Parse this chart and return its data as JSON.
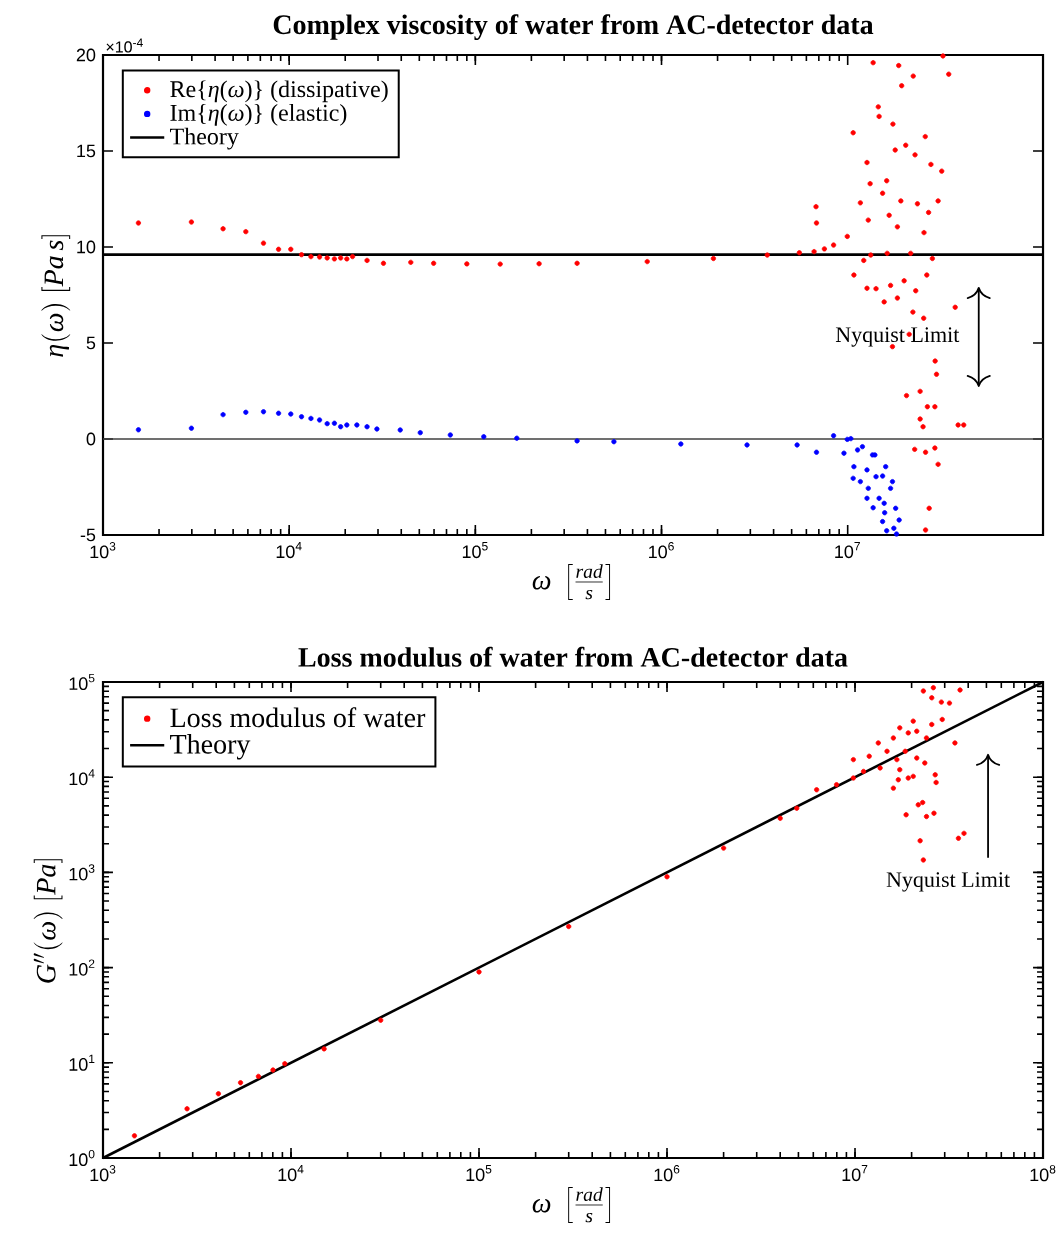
{
  "chart_data": [
    {
      "type": "scatter",
      "title": "Complex viscosity of water from AC-detector data",
      "xlabel": "\\omega\\ \\left[\\frac{rad}{s}\\right]",
      "ylabel": "\\eta(\\omega)\\ [Pa\\,s]",
      "log": "x",
      "grid": false,
      "legend": "top left",
      "xlim": [
        1000,
        112000000
      ],
      "ylim": [
        -5,
        20
      ],
      "xticks": [
        {
          "value": 1000,
          "label": "10$^{3}$"
        },
        {
          "value": 10000,
          "label": "10$^{4}$"
        },
        {
          "value": 100000,
          "label": "10$^{5}$"
        },
        {
          "value": 1000000,
          "label": "10$^{6}$"
        },
        {
          "value": 10000000,
          "label": "10$^{7}$"
        }
      ],
      "yticks": [
        -5,
        0,
        5,
        10,
        15,
        20
      ],
      "ref_lines": [
        {
          "axis": "y",
          "value": 0,
          "color": "#404040"
        }
      ],
      "annotations": [
        "×10$^{-4}$",
        "Nyquist Limit"
      ],
      "series": [
        {
          "name": "Re{*η*(*ω*)} (dissipative)",
          "marker": "circle",
          "color": "#ff0000",
          "x": [
            1550,
            2985,
            4415,
            5850,
            7280,
            8770,
            10200,
            11650,
            13090,
            14560,
            16000,
            17500,
            18900,
            20400,
            21900,
            26200,
            32100,
            45000,
            59700,
            90000,
            136000,
            220000,
            352000,
            838000,
            1900000,
            3700000,
            5500000,
            6600000,
            7500000,
            8400000,
            6760000,
            6800000,
            10700000,
            13700000,
            14600000,
            14750000,
            18800000,
            19500000,
            22500000,
            32500000,
            34900000,
            17500000,
            12700000,
            13200000,
            18000000,
            20500000,
            23000000,
            26100000,
            28000000,
            32000000,
            30600000,
            27200000,
            25700000,
            23700000,
            19300000,
            16200000,
            15400000,
            11700000,
            12900000,
            9950000,
            16700000,
            18500000,
            21800000,
            28500000,
            12200000,
            13300000,
            16300000,
            10800000,
            12700000,
            14200000,
            15700000,
            17000000,
            18500000,
            20100000,
            23200000,
            26600000,
            37800000,
            22400000,
            25600000,
            17400000,
            21400000,
            29500000,
            30000000,
            20700000,
            24500000,
            26800000,
            29400000,
            24500000,
            25400000,
            39200000,
            42000000,
            22900000,
            26200000,
            29400000,
            30600000,
            27400000,
            26200000
          ],
          "values": [
            11.25,
            11.3,
            10.95,
            10.8,
            10.2,
            9.88,
            9.88,
            9.6,
            9.5,
            9.48,
            9.43,
            9.38,
            9.43,
            9.38,
            9.5,
            9.3,
            9.15,
            9.2,
            9.15,
            9.12,
            9.11,
            9.13,
            9.15,
            9.24,
            9.4,
            9.58,
            9.7,
            9.76,
            9.9,
            10.1,
            12.1,
            11.25,
            15.95,
            19.6,
            17.3,
            16.8,
            19.45,
            18.4,
            18.9,
            19.95,
            19.0,
            16.4,
            14.4,
            13.3,
            15.05,
            15.3,
            14.8,
            15.75,
            14.3,
            13.95,
            12.4,
            11.8,
            10.75,
            12.25,
            12.4,
            13.45,
            12.8,
            12.3,
            11.4,
            10.55,
            11.65,
            11.05,
            9.67,
            9.4,
            9.3,
            9.58,
            9.67,
            8.54,
            7.85,
            7.83,
            7.14,
            8.0,
            7.34,
            8.24,
            7.72,
            8.54,
            6.86,
            6.61,
            6.29,
            4.81,
            5.45,
            4.06,
            3.37,
            2.26,
            2.48,
            1.68,
            1.68,
            1.04,
            0.64,
            0.73,
            0.73,
            -0.54,
            -0.69,
            -0.47,
            -1.32,
            -3.61,
            -4.74
          ]
        },
        {
          "name": "Im{*η*(*ω*)} (elastic)",
          "marker": "circle",
          "color": "#0000ff",
          "x": [
            1550,
            2985,
            4415,
            5850,
            7280,
            8770,
            10200,
            11650,
            13090,
            14560,
            16000,
            17500,
            18900,
            20400,
            23100,
            26200,
            29600,
            39500,
            50600,
            73400,
            111000,
            167000,
            352000,
            555000,
            1270000,
            2880000,
            5350000,
            6800000,
            8400000,
            9950000,
            10400000,
            9550000,
            10800000,
            11300000,
            12000000,
            10700000,
            11700000,
            12700000,
            13600000,
            14000000,
            12900000,
            14200000,
            15400000,
            16000000,
            12700000,
            14750000,
            13700000,
            15700000,
            17400000,
            17000000,
            18100000,
            15800000,
            18900000,
            15400000,
            16200000,
            17700000,
            18300000
          ],
          "values": [
            0.48,
            0.56,
            1.27,
            1.39,
            1.42,
            1.34,
            1.3,
            1.16,
            1.07,
            0.99,
            0.8,
            0.82,
            0.64,
            0.73,
            0.73,
            0.64,
            0.52,
            0.47,
            0.33,
            0.21,
            0.12,
            0.04,
            -0.1,
            -0.14,
            -0.26,
            -0.31,
            -0.31,
            -0.69,
            0.17,
            -0.02,
            0.02,
            -0.74,
            -1.44,
            -0.57,
            -0.4,
            -2.05,
            -2.22,
            -1.61,
            -0.83,
            -0.83,
            -2.57,
            -1.96,
            -1.93,
            -1.44,
            -3.09,
            -3.09,
            -3.58,
            -3.35,
            -2.22,
            -2.57,
            -3.61,
            -3.84,
            -4.22,
            -4.3,
            -4.78,
            -4.65,
            -4.95
          ]
        },
        {
          "name": "Theory",
          "type": "line",
          "marker": "none",
          "line_style": "solid",
          "color": "#000000",
          "x": [
            1000,
            112000000
          ],
          "values": [
            9.6,
            9.6
          ]
        }
      ]
    },
    {
      "type": "scatter",
      "title": "Loss modulus of water from AC-detector data",
      "xlabel": "\\omega\\ \\left[\\frac{rad}{s}\\right]",
      "ylabel": "G''(\\omega)\\ [Pa]",
      "log": "xy",
      "grid": false,
      "legend": "top left",
      "xlim": [
        1000,
        100000000
      ],
      "ylim": [
        1,
        100000
      ],
      "xticks": [
        {
          "value": 1000,
          "label": "10$^{3}$"
        },
        {
          "value": 10000,
          "label": "10$^{4}$"
        },
        {
          "value": 100000,
          "label": "10$^{5}$"
        },
        {
          "value": 1000000,
          "label": "10$^{6}$"
        },
        {
          "value": 10000000,
          "label": "10$^{7}$"
        },
        {
          "value": 100000000,
          "label": "10$^{8}$"
        }
      ],
      "yticks": [
        {
          "value": 1,
          "label": "10$^{0}$"
        },
        {
          "value": 10,
          "label": "10$^{1}$"
        },
        {
          "value": 100,
          "label": "10$^{2}$"
        },
        {
          "value": 1000,
          "label": "10$^{3}$"
        },
        {
          "value": 10000,
          "label": "10$^{4}$"
        },
        {
          "value": 100000,
          "label": "10$^{5}$"
        }
      ],
      "annotations": [
        "Nyquist Limit"
      ],
      "series": [
        {
          "name": "Loss modulus of water",
          "marker": "circle",
          "color": "#ff0000",
          "x": [
            1470,
            2800,
            4110,
            5390,
            6710,
            8020,
            9270,
            15000,
            30000,
            100000,
            300000,
            1000000,
            2000000,
            4000000,
            4900000,
            6250000,
            7980000,
            9800000,
            23100000,
            26100000,
            36200000,
            28800000,
            31800000,
            25600000,
            20400000,
            29100000,
            25600000,
            17300000,
            19200000,
            21300000,
            24000000,
            13300000,
            16000000,
            34000000,
            18500000,
            14800000,
            16700000,
            21300000,
            11900000,
            9800000,
            23500000,
            13600000,
            11100000,
            17300000,
            20400000,
            26700000,
            19200000,
            17000000,
            27000000,
            16000000,
            21700000,
            22900000,
            24000000,
            26300000,
            18700000,
            22200000,
            23100000,
            35500000,
            38000000
          ],
          "values": [
            1.71,
            3.29,
            4.73,
            6.18,
            7.2,
            8.4,
            9.8,
            14,
            28,
            90,
            270,
            900,
            1800,
            3700,
            4720,
            7380,
            8340,
            9800,
            80400,
            87100,
            82400,
            61500,
            60000,
            68200,
            38800,
            40400,
            35800,
            33000,
            29200,
            30400,
            25800,
            22900,
            25800,
            22900,
            18700,
            18700,
            15300,
            15900,
            16600,
            15300,
            14100,
            12500,
            11500,
            12000,
            10200,
            10600,
            9800,
            9400,
            8800,
            7670,
            5130,
            5420,
            3860,
            4180,
            4030,
            2150,
            1350,
            2280,
            2570
          ]
        },
        {
          "name": "Theory",
          "type": "line",
          "marker": "none",
          "line_style": "solid",
          "color": "#000000",
          "x": [
            1000,
            100000000
          ],
          "values": [
            1,
            100000
          ]
        }
      ]
    }
  ]
}
